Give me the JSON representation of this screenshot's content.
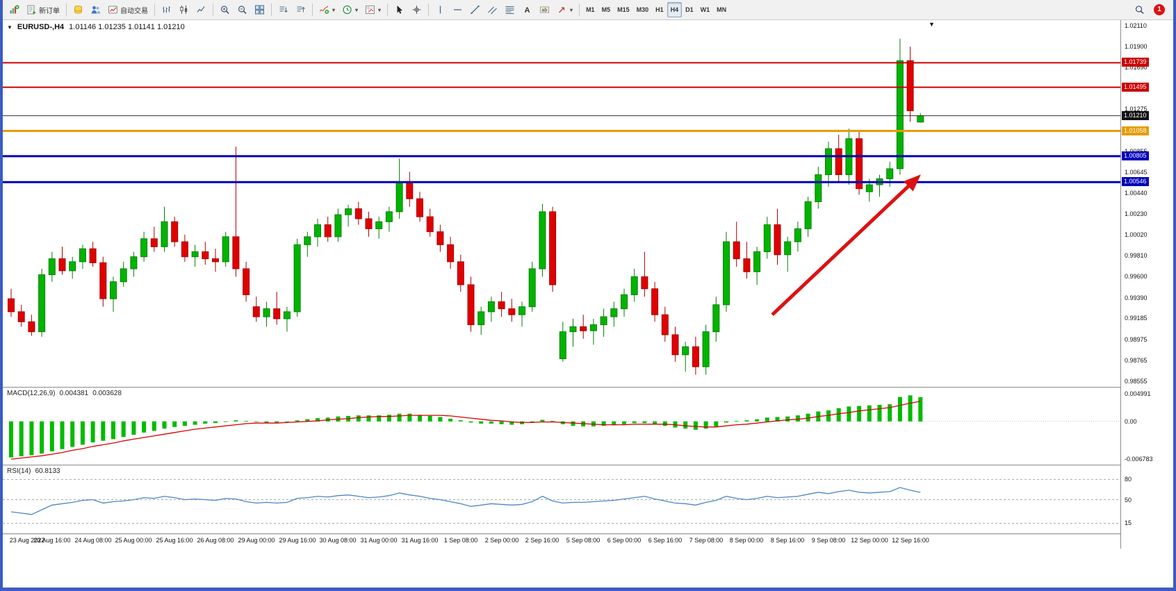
{
  "toolbar": {
    "groups": [
      {
        "items": [
          {
            "name": "new-chart",
            "icon": "new-chart-icon"
          },
          {
            "name": "new-order",
            "icon": "new-order-icon",
            "label": "新订单"
          }
        ]
      },
      {
        "items": [
          {
            "name": "market",
            "icon": "market-icon"
          },
          {
            "name": "community",
            "icon": "community-icon"
          },
          {
            "name": "algo-trading",
            "icon": "algo-trading-icon",
            "label": "自动交易"
          }
        ]
      },
      {
        "items": [
          {
            "name": "bar-chart-mode",
            "icon": "bar-chart-icon"
          },
          {
            "name": "candlestick-mode",
            "icon": "candlestick-icon"
          },
          {
            "name": "line-chart-mode",
            "icon": "line-chart-icon"
          }
        ]
      },
      {
        "items": [
          {
            "name": "zoom-in",
            "icon": "zoom-in-icon"
          },
          {
            "name": "zoom-out",
            "icon": "zoom-out-icon"
          },
          {
            "name": "tile-windows",
            "icon": "tile-windows-icon"
          }
        ]
      },
      {
        "items": [
          {
            "name": "arrange-windows",
            "icon": "arrange-windows-icon"
          },
          {
            "name": "cascade-windows",
            "icon": "cascade-windows-icon"
          }
        ]
      },
      {
        "items": [
          {
            "name": "indicators",
            "icon": "indicators-icon",
            "dropdown": true
          },
          {
            "name": "periods",
            "icon": "periods-icon",
            "dropdown": true
          },
          {
            "name": "templates",
            "icon": "templates-icon",
            "dropdown": true
          }
        ]
      },
      {
        "items": [
          {
            "name": "cursor",
            "icon": "cursor-icon"
          },
          {
            "name": "crosshair",
            "icon": "crosshair-icon"
          }
        ]
      },
      {
        "items": [
          {
            "name": "vertical-line",
            "icon": "vertical-line-icon"
          },
          {
            "name": "horizontal-line",
            "icon": "horizontal-line-icon"
          },
          {
            "name": "trendline",
            "icon": "trendline-icon"
          },
          {
            "name": "channel",
            "icon": "channel-icon"
          },
          {
            "name": "fibonacci",
            "icon": "fibonacci-icon"
          },
          {
            "name": "text",
            "icon": "text-icon"
          },
          {
            "name": "text-label",
            "icon": "text-label-icon"
          },
          {
            "name": "arrows",
            "icon": "arrows-icon",
            "dropdown": true
          }
        ]
      },
      {
        "items": [
          {
            "name": "tf-m1",
            "label": "M1"
          },
          {
            "name": "tf-m5",
            "label": "M5"
          },
          {
            "name": "tf-m15",
            "label": "M15"
          },
          {
            "name": "tf-m30",
            "label": "M30"
          },
          {
            "name": "tf-h1",
            "label": "H1"
          },
          {
            "name": "tf-h4",
            "label": "H4",
            "active": true
          },
          {
            "name": "tf-d1",
            "label": "D1"
          },
          {
            "name": "tf-w1",
            "label": "W1"
          },
          {
            "name": "tf-mn",
            "label": "MN"
          }
        ]
      }
    ],
    "right": [
      {
        "name": "search",
        "icon": "magnifier-icon"
      },
      {
        "name": "notifications",
        "badge": "1"
      }
    ]
  },
  "chart": {
    "menu_glyph": "▼",
    "title": "EURUSD-,H4",
    "quotes": "1.01146 1.01235 1.01141 1.01210",
    "shift_glyph": "▼"
  },
  "chart_data": {
    "type": "candlestick",
    "symbol": "EURUSD-",
    "timeframe": "H4",
    "colors": {
      "bull": "#00b400",
      "bear": "#e00000",
      "bull_stroke": "#008000",
      "bear_stroke": "#a80000",
      "hist": "#00bb00",
      "signal": "#dd0000",
      "rsi": "#4a86c8",
      "frame": "#3b5bc5"
    },
    "price_axis": {
      "min": 0.98555,
      "max": 1.0211,
      "tick_labels": [
        "1.02110",
        "1.01900",
        "1.01690",
        "1.01275",
        "1.00855",
        "1.00645",
        "1.00440",
        "1.00230",
        "1.00020",
        "0.99810",
        "0.99600",
        "0.99390",
        "0.99185",
        "0.98975",
        "0.98765",
        "0.98555"
      ]
    },
    "x_labels": [
      "23 Aug 2022",
      "23 Aug 16:00",
      "24 Aug 08:00",
      "25 Aug 00:00",
      "25 Aug 16:00",
      "26 Aug 08:00",
      "29 Aug 00:00",
      "29 Aug 16:00",
      "30 Aug 08:00",
      "31 Aug 00:00",
      "31 Aug 16:00",
      "1 Sep 08:00",
      "2 Sep 00:00",
      "2 Sep 16:00",
      "5 Sep 08:00",
      "6 Sep 00:00",
      "6 Sep 16:00",
      "7 Sep 08:00",
      "8 Sep 00:00",
      "8 Sep 16:00",
      "9 Sep 08:00",
      "12 Sep 00:00",
      "12 Sep 16:00"
    ],
    "x_label_every": 4,
    "candles": [
      [
        0.9938,
        0.9948,
        0.992,
        0.9925
      ],
      [
        0.9925,
        0.9932,
        0.991,
        0.9915
      ],
      [
        0.9915,
        0.9922,
        0.9901,
        0.9905
      ],
      [
        0.9905,
        0.9968,
        0.99,
        0.9962
      ],
      [
        0.9962,
        0.9985,
        0.9955,
        0.9978
      ],
      [
        0.9978,
        0.999,
        0.9962,
        0.9966
      ],
      [
        0.9966,
        0.998,
        0.9958,
        0.9975
      ],
      [
        0.9975,
        0.9992,
        0.9968,
        0.9988
      ],
      [
        0.9988,
        0.9995,
        0.997,
        0.9974
      ],
      [
        0.9974,
        0.998,
        0.993,
        0.9938
      ],
      [
        0.9938,
        0.996,
        0.9925,
        0.9955
      ],
      [
        0.9955,
        0.9975,
        0.995,
        0.9968
      ],
      [
        0.9968,
        0.9985,
        0.996,
        0.998
      ],
      [
        0.998,
        1.0005,
        0.9975,
        0.9998
      ],
      [
        0.9998,
        1.001,
        0.9985,
        0.999
      ],
      [
        0.999,
        1.003,
        0.9985,
        1.0015
      ],
      [
        1.0015,
        1.002,
        0.999,
        0.9995
      ],
      [
        0.9995,
        1.0002,
        0.9975,
        0.998
      ],
      [
        0.998,
        0.9992,
        0.997,
        0.9985
      ],
      [
        0.9985,
        0.9995,
        0.9972,
        0.9978
      ],
      [
        0.9978,
        0.9988,
        0.9965,
        0.9975
      ],
      [
        0.9975,
        1.0005,
        0.997,
        1.0
      ],
      [
        1.0,
        1.009,
        0.996,
        0.9968
      ],
      [
        0.9968,
        0.9975,
        0.9935,
        0.9942
      ],
      [
        0.993,
        0.994,
        0.9915,
        0.992
      ],
      [
        0.992,
        0.9935,
        0.991,
        0.9928
      ],
      [
        0.9928,
        0.9945,
        0.9912,
        0.9918
      ],
      [
        0.9918,
        0.993,
        0.9905,
        0.9925
      ],
      [
        0.9925,
        0.9998,
        0.992,
        0.9992
      ],
      [
        0.9992,
        1.0005,
        0.998,
        1.0
      ],
      [
        1.0,
        1.0018,
        0.999,
        1.0012
      ],
      [
        1.0012,
        1.002,
        0.9995,
        1.0
      ],
      [
        1.0,
        1.0028,
        0.9995,
        1.0022
      ],
      [
        1.0022,
        1.0032,
        1.001,
        1.0028
      ],
      [
        1.0028,
        1.0035,
        1.0012,
        1.0018
      ],
      [
        1.0018,
        1.0025,
        1.0,
        1.0008
      ],
      [
        1.0008,
        1.002,
        0.9998,
        1.0015
      ],
      [
        1.0015,
        1.003,
        1.0005,
        1.0025
      ],
      [
        1.0025,
        1.0078,
        1.0018,
        1.0055
      ],
      [
        1.0055,
        1.0065,
        1.003,
        1.0038
      ],
      [
        1.0038,
        1.0045,
        1.0015,
        1.002
      ],
      [
        1.002,
        1.0028,
        1.0,
        1.0005
      ],
      [
        1.0005,
        1.0012,
        0.9985,
        0.9992
      ],
      [
        0.9992,
        1.0,
        0.9968,
        0.9975
      ],
      [
        0.9975,
        0.9982,
        0.9945,
        0.9952
      ],
      [
        0.9952,
        0.996,
        0.9905,
        0.9912
      ],
      [
        0.9912,
        0.993,
        0.9902,
        0.9925
      ],
      [
        0.9925,
        0.994,
        0.9915,
        0.9935
      ],
      [
        0.9935,
        0.9945,
        0.992,
        0.9928
      ],
      [
        0.9928,
        0.9938,
        0.9915,
        0.9922
      ],
      [
        0.9922,
        0.9935,
        0.991,
        0.993
      ],
      [
        0.993,
        0.9975,
        0.9925,
        0.9968
      ],
      [
        0.9968,
        1.0033,
        0.996,
        1.0025
      ],
      [
        1.0025,
        1.003,
        0.9945,
        0.9952
      ],
      [
        0.9878,
        0.9915,
        0.9875,
        0.9905
      ],
      [
        0.9905,
        0.9918,
        0.989,
        0.991
      ],
      [
        0.991,
        0.9922,
        0.9898,
        0.9906
      ],
      [
        0.9906,
        0.9918,
        0.9892,
        0.9912
      ],
      [
        0.9912,
        0.9928,
        0.99,
        0.992
      ],
      [
        0.992,
        0.9935,
        0.991,
        0.9928
      ],
      [
        0.9928,
        0.9948,
        0.992,
        0.9942
      ],
      [
        0.9942,
        0.9968,
        0.9935,
        0.996
      ],
      [
        0.996,
        0.9985,
        0.994,
        0.9948
      ],
      [
        0.9948,
        0.9955,
        0.9915,
        0.9922
      ],
      [
        0.9922,
        0.993,
        0.9895,
        0.9902
      ],
      [
        0.9902,
        0.991,
        0.9875,
        0.9882
      ],
      [
        0.9882,
        0.9895,
        0.9865,
        0.989
      ],
      [
        0.989,
        0.99,
        0.9862,
        0.987
      ],
      [
        0.987,
        0.9912,
        0.9862,
        0.9905
      ],
      [
        0.9905,
        0.994,
        0.9895,
        0.9932
      ],
      [
        0.9932,
        1.0005,
        0.9925,
        0.9995
      ],
      [
        0.9995,
        1.0015,
        0.997,
        0.9978
      ],
      [
        0.9978,
        0.9995,
        0.9958,
        0.9965
      ],
      [
        0.9965,
        0.999,
        0.9952,
        0.9985
      ],
      [
        0.9985,
        1.002,
        0.9978,
        1.0012
      ],
      [
        1.0012,
        1.0028,
        0.9972,
        0.9982
      ],
      [
        0.9982,
        1.0,
        0.9965,
        0.9995
      ],
      [
        0.9995,
        1.0015,
        0.9985,
        1.0008
      ],
      [
        1.0008,
        1.004,
        1.0,
        1.0035
      ],
      [
        1.0035,
        1.007,
        1.0028,
        1.0062
      ],
      [
        1.0062,
        1.0095,
        1.005,
        1.0088
      ],
      [
        1.0088,
        1.0102,
        1.0055,
        1.0062
      ],
      [
        1.0062,
        1.0108,
        1.0052,
        1.0098
      ],
      [
        1.0098,
        1.0105,
        1.0042,
        1.0048
      ],
      [
        1.0045,
        1.0058,
        1.0035,
        1.0052
      ],
      [
        1.0052,
        1.0062,
        1.004,
        1.0058
      ],
      [
        1.0058,
        1.0075,
        1.005,
        1.0068
      ],
      [
        1.0068,
        1.0198,
        1.0062,
        1.0176
      ],
      [
        1.0176,
        1.019,
        1.0115,
        1.0126
      ],
      [
        1.01146,
        1.01235,
        1.01141,
        1.0121
      ]
    ],
    "hlines": [
      {
        "price": 1.01739,
        "color": "#cc0000",
        "width": 2,
        "label": "1.01739",
        "badge_bg": "#cc0000"
      },
      {
        "price": 1.01495,
        "color": "#cc0000",
        "width": 2,
        "label": "1.01495",
        "badge_bg": "#cc0000"
      },
      {
        "price": 1.0121,
        "color": "#303030",
        "width": 1,
        "label": "1.01210",
        "badge_bg": "#111111"
      },
      {
        "price": 1.01058,
        "color": "#e89b00",
        "width": 3,
        "label": "1.01058",
        "badge_bg": "#e89b00"
      },
      {
        "price": 1.00805,
        "color": "#0000bb",
        "width": 3,
        "label": "1.00805",
        "badge_bg": "#0000bb"
      },
      {
        "price": 1.00546,
        "color": "#0000bb",
        "width": 3,
        "label": "1.00546",
        "badge_bg": "#0000bb"
      }
    ],
    "trend_arrow": {
      "i1": 74.5,
      "p1": 0.9922,
      "i2": 88.6,
      "p2": 1.0058,
      "color": "#dd1111"
    },
    "macd": {
      "label": "MACD(12,26,9)",
      "value_main": "0.004381",
      "value_signal": "0.003628",
      "scale_max": 0.004991,
      "scale_min": -0.006783,
      "axis_labels": [
        {
          "text": "0.004991",
          "value": 0.004991
        },
        {
          "text": "0.00",
          "value": 0
        },
        {
          "text": "-0.006783",
          "value": -0.006783
        }
      ],
      "values": [
        -0.0065,
        -0.0063,
        -0.0061,
        -0.0058,
        -0.0054,
        -0.005,
        -0.0046,
        -0.0042,
        -0.0038,
        -0.0035,
        -0.0032,
        -0.0028,
        -0.0024,
        -0.002,
        -0.0017,
        -0.0013,
        -0.001,
        -0.0008,
        -0.0006,
        -0.0004,
        -0.0003,
        -0.0001,
        0.0002,
        0.0001,
        -0.0001,
        -0.0002,
        -0.0002,
        -0.0001,
        0.0002,
        0.0004,
        0.0006,
        0.0007,
        0.0009,
        0.001,
        0.0011,
        0.0011,
        0.0011,
        0.0012,
        0.0014,
        0.0014,
        0.0012,
        0.001,
        0.0008,
        0.0005,
        0.0002,
        -0.0002,
        -0.0004,
        -0.0004,
        -0.0005,
        -0.0006,
        -0.0005,
        -0.0002,
        0.0003,
        0.0001,
        -0.0005,
        -0.0008,
        -0.0009,
        -0.0009,
        -0.0008,
        -0.0007,
        -0.0005,
        -0.0003,
        -0.0003,
        -0.0005,
        -0.0008,
        -0.0011,
        -0.0013,
        -0.0015,
        -0.0013,
        -0.0009,
        -0.0002,
        0.0001,
        0.0002,
        0.0004,
        0.0007,
        0.0008,
        0.0009,
        0.0011,
        0.0014,
        0.0018,
        0.002,
        0.0024,
        0.0027,
        0.0028,
        0.0029,
        0.003,
        0.0031,
        0.0044,
        0.0047,
        0.004381
      ],
      "signal": [
        -0.0068,
        -0.0066,
        -0.0064,
        -0.0062,
        -0.0059,
        -0.0056,
        -0.0052,
        -0.0049,
        -0.0045,
        -0.0042,
        -0.0039,
        -0.0035,
        -0.0032,
        -0.0029,
        -0.0026,
        -0.0023,
        -0.002,
        -0.0017,
        -0.0014,
        -0.0012,
        -0.001,
        -0.0008,
        -0.0006,
        -0.0004,
        -0.0003,
        -0.0003,
        -0.0003,
        -0.0002,
        -0.0001,
        0.0,
        0.0001,
        0.0003,
        0.0004,
        0.0005,
        0.0007,
        0.0008,
        0.0009,
        0.0009,
        0.001,
        0.0011,
        0.0011,
        0.0011,
        0.0011,
        0.001,
        0.0008,
        0.0006,
        0.0004,
        0.0002,
        0.0001,
        -0.0001,
        -0.0002,
        -0.0002,
        -0.0001,
        -0.0001,
        -0.0002,
        -0.0003,
        -0.0004,
        -0.0005,
        -0.0006,
        -0.0006,
        -0.0006,
        -0.0005,
        -0.0005,
        -0.0005,
        -0.0005,
        -0.0006,
        -0.0008,
        -0.0009,
        -0.001,
        -0.001,
        -0.0008,
        -0.0006,
        -0.0005,
        -0.0003,
        -0.0001,
        0.0001,
        0.0003,
        0.0004,
        0.0006,
        0.0009,
        0.0011,
        0.0014,
        0.0016,
        0.0019,
        0.0021,
        0.0023,
        0.0025,
        0.0029,
        0.0033,
        0.003628
      ]
    },
    "rsi": {
      "label": "RSI(14)",
      "value_label": "60.8133",
      "levels": [
        {
          "text": "80",
          "value": 80
        },
        {
          "text": "50",
          "value": 50
        },
        {
          "text": "15",
          "value": 15
        }
      ],
      "values": [
        32,
        30,
        28,
        35,
        42,
        44,
        46,
        49,
        50,
        45,
        47,
        48,
        50,
        53,
        52,
        55,
        53,
        50,
        51,
        50,
        49,
        52,
        51,
        47,
        45,
        46,
        45,
        46,
        52,
        53,
        55,
        54,
        56,
        57,
        55,
        53,
        54,
        56,
        60,
        57,
        55,
        52,
        50,
        47,
        44,
        40,
        42,
        44,
        43,
        42,
        43,
        47,
        55,
        48,
        45,
        46,
        46,
        47,
        48,
        49,
        51,
        53,
        55,
        51,
        48,
        45,
        44,
        42,
        46,
        49,
        55,
        52,
        50,
        52,
        55,
        53,
        54,
        55,
        58,
        61,
        59,
        62,
        64,
        61,
        60,
        61,
        62,
        68,
        64,
        60.8133
      ]
    }
  }
}
